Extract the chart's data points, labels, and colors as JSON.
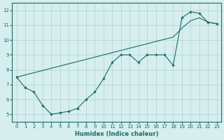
{
  "line1_x": [
    0,
    1,
    2,
    3,
    4,
    5,
    6,
    7,
    8,
    9,
    10,
    11,
    12,
    13,
    14,
    15,
    16,
    17,
    18,
    19,
    20,
    21,
    22,
    23
  ],
  "line1_y": [
    7.5,
    6.8,
    6.5,
    5.6,
    5.0,
    5.1,
    5.2,
    5.4,
    6.0,
    6.5,
    7.4,
    8.5,
    9.0,
    9.0,
    8.5,
    9.0,
    9.0,
    9.0,
    8.3,
    11.5,
    11.9,
    11.8,
    11.2,
    11.1
  ],
  "line2_x": [
    0,
    1,
    2,
    3,
    4,
    5,
    6,
    7,
    8,
    9,
    10,
    11,
    12,
    13,
    14,
    15,
    16,
    17,
    18,
    19,
    20,
    21,
    22,
    23
  ],
  "line2_y": [
    7.5,
    7.65,
    7.8,
    7.95,
    8.1,
    8.25,
    8.4,
    8.55,
    8.7,
    8.85,
    9.0,
    9.15,
    9.3,
    9.45,
    9.6,
    9.75,
    9.9,
    10.05,
    10.2,
    10.8,
    11.3,
    11.5,
    11.2,
    11.1
  ],
  "xlim": [
    -0.5,
    23.5
  ],
  "ylim": [
    4.5,
    12.5
  ],
  "yticks": [
    5,
    6,
    7,
    8,
    9,
    10,
    11,
    12
  ],
  "xticks": [
    0,
    1,
    2,
    3,
    4,
    5,
    6,
    7,
    8,
    9,
    10,
    11,
    12,
    13,
    14,
    15,
    16,
    17,
    18,
    19,
    20,
    21,
    22,
    23
  ],
  "xlabel": "Humidex (Indice chaleur)",
  "line_color": "#1a6b6b",
  "bg_color": "#d6eeee",
  "grid_color": "#b0d0d0"
}
